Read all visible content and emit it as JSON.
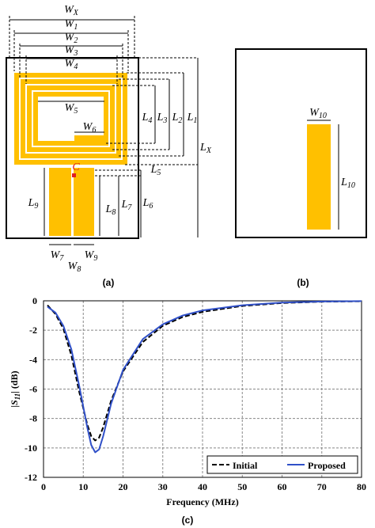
{
  "diagram_a": {
    "caption": "(a)",
    "point": "C",
    "labels": [
      {
        "base": "W",
        "sub": "X"
      },
      {
        "base": "W",
        "sub": "1"
      },
      {
        "base": "W",
        "sub": "2"
      },
      {
        "base": "W",
        "sub": "3"
      },
      {
        "base": "W",
        "sub": "4"
      },
      {
        "base": "W",
        "sub": "5"
      },
      {
        "base": "W",
        "sub": "6"
      },
      {
        "base": "L",
        "sub": "4"
      },
      {
        "base": "L",
        "sub": "3"
      },
      {
        "base": "L",
        "sub": "2"
      },
      {
        "base": "L",
        "sub": "1"
      },
      {
        "base": "L",
        "sub": "X"
      },
      {
        "base": "L",
        "sub": "5"
      },
      {
        "base": "L",
        "sub": "9"
      },
      {
        "base": "L",
        "sub": "8"
      },
      {
        "base": "L",
        "sub": "7"
      },
      {
        "base": "L",
        "sub": "6"
      },
      {
        "base": "W",
        "sub": "7"
      },
      {
        "base": "W",
        "sub": "8"
      },
      {
        "base": "W",
        "sub": "9"
      }
    ]
  },
  "diagram_b": {
    "caption": "(b)",
    "labels": [
      {
        "base": "W",
        "sub": "10"
      },
      {
        "base": "L",
        "sub": "10"
      }
    ]
  },
  "chart_data": {
    "type": "line",
    "caption": "(c)",
    "x_label": "Frequency (MHz)",
    "y_label_parts": [
      "|",
      "S",
      "11",
      "| (dB)"
    ],
    "x": [
      1,
      3,
      5,
      7,
      9,
      11,
      12,
      13,
      14,
      15,
      17,
      20,
      25,
      30,
      35,
      40,
      50,
      60,
      70,
      80
    ],
    "series": [
      {
        "name": "Initial",
        "color": "#000000",
        "dashed": true,
        "values": [
          -0.3,
          -0.9,
          -1.9,
          -3.7,
          -6.2,
          -8.4,
          -9.2,
          -9.5,
          -9.3,
          -8.6,
          -6.8,
          -4.8,
          -2.8,
          -1.7,
          -1.1,
          -0.75,
          -0.35,
          -0.15,
          -0.06,
          -0.03
        ]
      },
      {
        "name": "Proposed",
        "color": "#3050c8",
        "dashed": false,
        "values": [
          -0.4,
          -0.8,
          -1.7,
          -3.3,
          -5.8,
          -8.6,
          -9.8,
          -10.3,
          -10.1,
          -9.2,
          -7.0,
          -4.7,
          -2.6,
          -1.6,
          -1.0,
          -0.65,
          -0.3,
          -0.12,
          -0.05,
          -0.02
        ]
      }
    ],
    "xlim": [
      0,
      80
    ],
    "ylim": [
      -12,
      0
    ],
    "xticks": [
      0,
      10,
      20,
      30,
      40,
      50,
      60,
      70,
      80
    ],
    "yticks": [
      0,
      -2,
      -4,
      -6,
      -8,
      -10,
      -12
    ],
    "grid": true,
    "legend": "lower right"
  }
}
